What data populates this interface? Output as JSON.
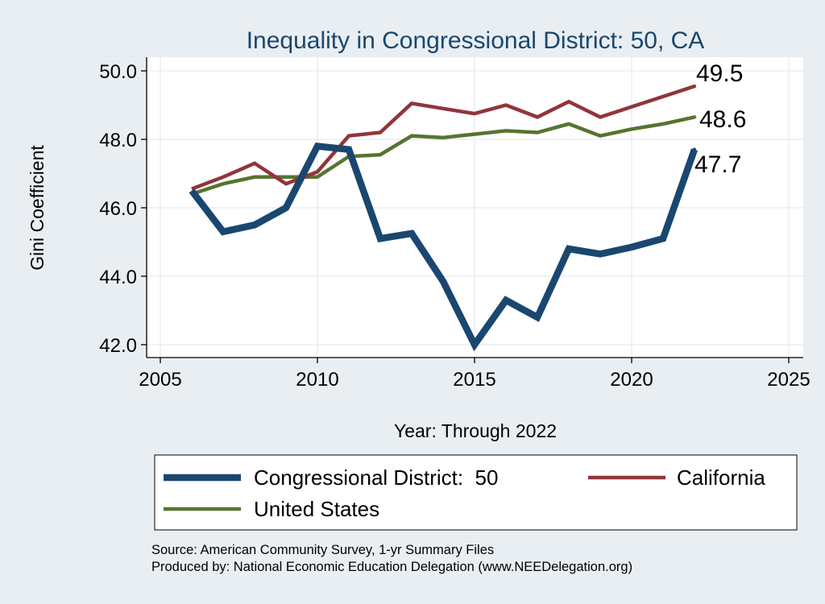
{
  "chart_data": {
    "type": "line",
    "title": "Inequality in Congressional District:  50, CA",
    "xlabel": "Year: Through 2022",
    "ylabel": "Gini Coefficient",
    "xlim": [
      2005,
      2025
    ],
    "ylim": [
      42.0,
      50.0
    ],
    "x_ticks": [
      2005,
      2010,
      2015,
      2020,
      2025
    ],
    "y_ticks": [
      42.0,
      44.0,
      46.0,
      48.0,
      50.0
    ],
    "grid": true,
    "series": [
      {
        "name": "Congressional District:  50",
        "color": "#1a476f",
        "x": [
          2006,
          2007,
          2008,
          2009,
          2010,
          2011,
          2012,
          2013,
          2014,
          2015,
          2016,
          2017,
          2018,
          2019,
          2020,
          2021,
          2022
        ],
        "values": [
          46.5,
          45.3,
          45.5,
          46.0,
          47.8,
          47.7,
          45.1,
          45.25,
          43.85,
          42.0,
          43.3,
          42.8,
          44.8,
          44.65,
          44.85,
          45.1,
          47.7
        ],
        "end_label": "47.7"
      },
      {
        "name": "California",
        "color": "#90353b",
        "x": [
          2006,
          2007,
          2008,
          2009,
          2010,
          2011,
          2012,
          2013,
          2014,
          2015,
          2016,
          2017,
          2018,
          2019,
          2020,
          2021,
          2022
        ],
        "values": [
          46.55,
          46.9,
          47.3,
          46.7,
          47.05,
          48.1,
          48.2,
          49.05,
          48.9,
          48.75,
          49.0,
          48.65,
          49.1,
          48.65,
          48.95,
          49.25,
          49.55
        ],
        "end_label": "49.5"
      },
      {
        "name": "United States",
        "color": "#55752f",
        "x": [
          2006,
          2007,
          2008,
          2009,
          2010,
          2011,
          2012,
          2013,
          2014,
          2015,
          2016,
          2017,
          2018,
          2019,
          2020,
          2021,
          2022
        ],
        "values": [
          46.4,
          46.7,
          46.9,
          46.9,
          46.9,
          47.5,
          47.55,
          48.1,
          48.05,
          48.15,
          48.25,
          48.2,
          48.45,
          48.1,
          48.3,
          48.45,
          48.65
        ],
        "end_label": "48.6"
      }
    ],
    "legend": {
      "placement": "bottom",
      "items": [
        "Congressional District:  50",
        "California",
        "United States"
      ]
    }
  },
  "footer": {
    "source": "Source: American Community Survey, 1-yr Summary Files",
    "produced_by": "Produced by: National Economic Education Delegation (www.NEEDelegation.org)"
  },
  "colors": {
    "background": "#e9eef2",
    "plot_background": "#ffffff",
    "grid": "#e6ebef",
    "title": "#1a476f",
    "text": "#000000"
  }
}
